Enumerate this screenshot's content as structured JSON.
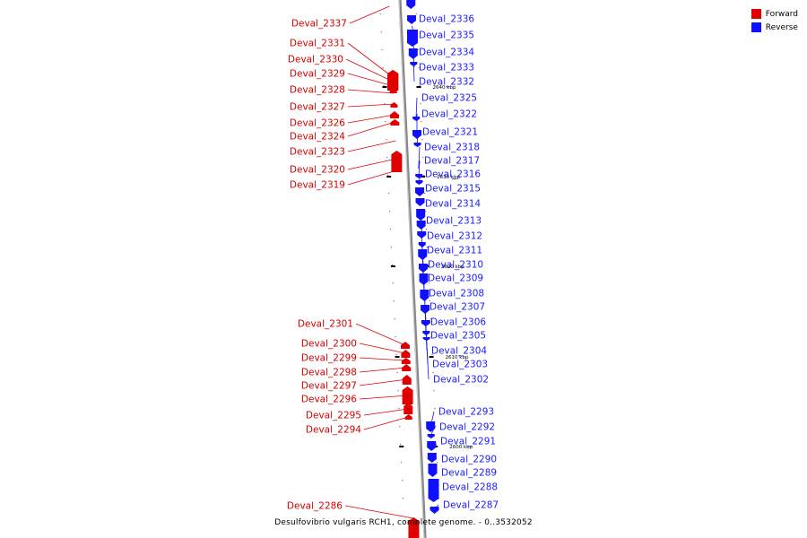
{
  "caption": "Desulfovibrio vulgaris RCH1, complete genome. - 0..3532052",
  "legend": {
    "forward_label": "Forward",
    "reverse_label": "Reverse",
    "forward_color": "#e00000",
    "reverse_color": "#1010ff"
  },
  "scale_marks": [
    "2640 kbp",
    "2630 kbp",
    "2620 kbp",
    "2610 kbp",
    "2600 kbp"
  ],
  "forward_genes": [
    "Deval_2337",
    "Deval_2331",
    "Deval_2330",
    "Deval_2329",
    "Deval_2328",
    "Deval_2327",
    "Deval_2326",
    "Deval_2324",
    "Deval_2323",
    "Deval_2320",
    "Deval_2319",
    "Deval_2301",
    "Deval_2300",
    "Deval_2299",
    "Deval_2298",
    "Deval_2297",
    "Deval_2296",
    "Deval_2295",
    "Deval_2294",
    "Deval_2286"
  ],
  "reverse_genes": [
    "Deval_2336",
    "Deval_2335",
    "Deval_2334",
    "Deval_2333",
    "Deval_2332",
    "Deval_2325",
    "Deval_2322",
    "Deval_2321",
    "Deval_2318",
    "Deval_2317",
    "Deval_2316",
    "Deval_2315",
    "Deval_2314",
    "Deval_2313",
    "Deval_2312",
    "Deval_2311",
    "Deval_2310",
    "Deval_2309",
    "Deval_2308",
    "Deval_2307",
    "Deval_2306",
    "Deval_2305",
    "Deval_2304",
    "Deval_2303",
    "Deval_2302",
    "Deval_2293",
    "Deval_2292",
    "Deval_2291",
    "Deval_2290",
    "Deval_2289",
    "Deval_2288",
    "Deval_2287"
  ]
}
